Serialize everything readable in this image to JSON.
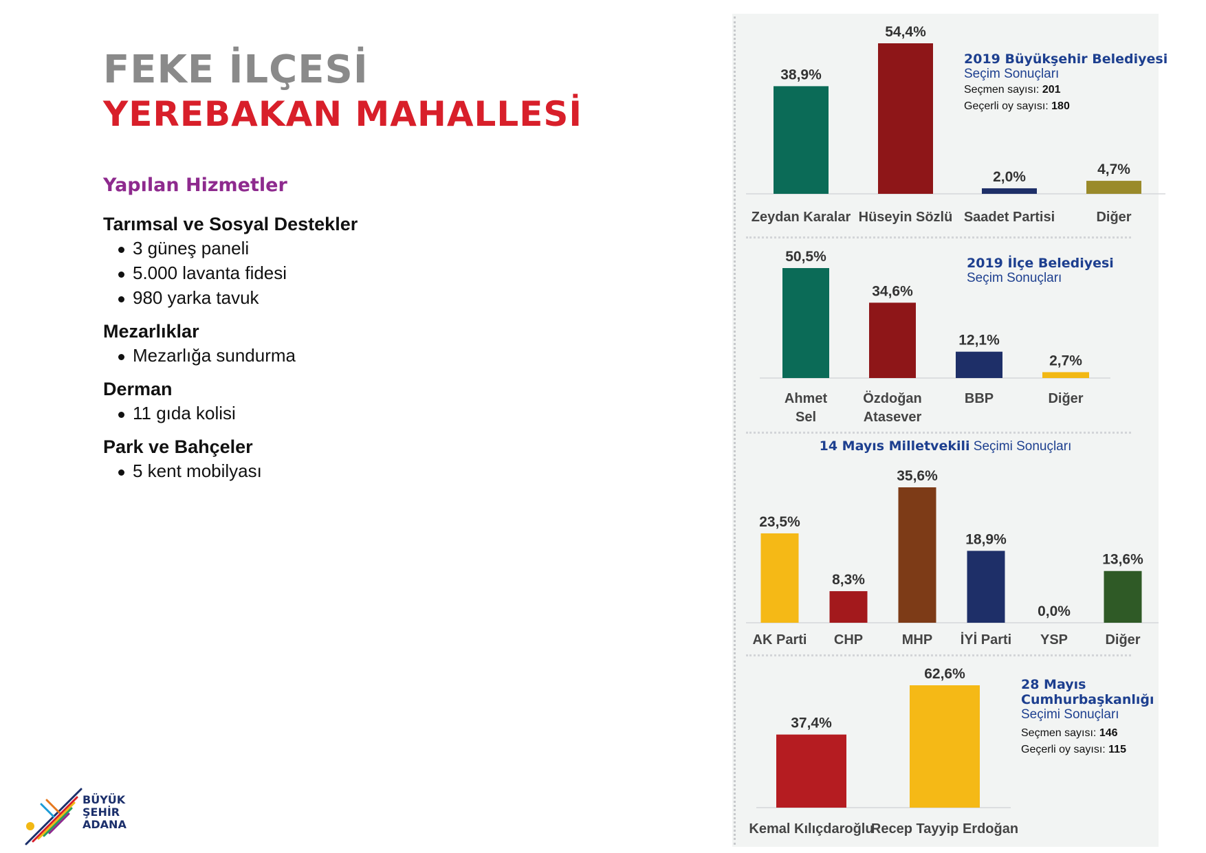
{
  "header": {
    "district": "FEKE İLÇESİ",
    "neighborhood": "YEREBAKAN MAHALLESİ"
  },
  "services": {
    "heading": "Yapılan Hizmetler",
    "categories": [
      {
        "title": "Tarımsal ve Sosyal Destekler",
        "items": [
          "3 güneş paneli",
          "5.000 lavanta fidesi",
          "980 yarka tavuk"
        ]
      },
      {
        "title": "Mezarlıklar",
        "items": [
          "Mezarlığa sundurma"
        ]
      },
      {
        "title": "Derman",
        "items": [
          "11 gıda kolisi"
        ]
      },
      {
        "title": "Park ve Bahçeler",
        "items": [
          "5 kent mobilyası"
        ]
      }
    ]
  },
  "logo": {
    "line1": "BÜYÜK",
    "line2": "ŞEHİR",
    "line3": "ADANA"
  },
  "chart_data": [
    {
      "type": "bar",
      "title_bold": "2019 Büyükşehir Belediyesi",
      "title_rest": "Seçim Sonuçları",
      "voters_label": "Seçmen sayısı:",
      "voters": "201",
      "valid_label": "Geçerli oy sayısı:",
      "valid": "180",
      "categories": [
        "Zeydan Karalar",
        "Hüseyin Sözlü",
        "Saadet Partisi",
        "Diğer"
      ],
      "values": [
        38.9,
        54.4,
        2.0,
        4.7
      ],
      "labels": [
        "38,9%",
        "54,4%",
        "2,0%",
        "4,7%"
      ],
      "colors": [
        "#0b6b57",
        "#8e1618",
        "#1e2f68",
        "#9a8a2a"
      ],
      "ylim": [
        0,
        54.4
      ]
    },
    {
      "type": "bar",
      "title_bold": "2019 İlçe Belediyesi",
      "title_rest": "Seçim Sonuçları",
      "categories": [
        "Ahmet Sel",
        "Özdoğan Atasever",
        "BBP",
        "Diğer"
      ],
      "values": [
        50.5,
        34.6,
        12.1,
        2.7
      ],
      "labels": [
        "50,5%",
        "34,6%",
        "12,1%",
        "2,7%"
      ],
      "colors": [
        "#0b6b57",
        "#8e1618",
        "#1e2f68",
        "#f2b814"
      ],
      "ylim": [
        0,
        50.5
      ]
    },
    {
      "type": "bar",
      "title_bold": "14 Mayıs Milletvekili",
      "title_rest": "Seçimi Sonuçları",
      "categories": [
        "AK Parti",
        "CHP",
        "MHP",
        "İYİ Parti",
        "YSP",
        "Diğer"
      ],
      "values": [
        23.5,
        8.3,
        35.6,
        18.9,
        0.0,
        13.6
      ],
      "labels": [
        "23,5%",
        "8,3%",
        "35,6%",
        "18,9%",
        "0,0%",
        "13,6%"
      ],
      "colors": [
        "#f5b916",
        "#a3191c",
        "#7d3b17",
        "#1e2f68",
        "#7a2b8a",
        "#2f5a26"
      ],
      "ylim": [
        0,
        35.6
      ]
    },
    {
      "type": "bar",
      "title_line1": "28 Mayıs",
      "title_line2": "Cumhurbaşkanlığı",
      "title_rest": "Seçimi Sonuçları",
      "voters_label": "Seçmen sayısı:",
      "voters": "146",
      "valid_label": "Geçerli oy sayısı:",
      "valid": "115",
      "categories": [
        "Kemal Kılıçdaroğlu",
        "Recep Tayyip Erdoğan"
      ],
      "values": [
        37.4,
        62.6
      ],
      "labels": [
        "37,4%",
        "62,6%"
      ],
      "colors": [
        "#b51c21",
        "#f5b916"
      ],
      "ylim": [
        0,
        62.6
      ]
    }
  ]
}
